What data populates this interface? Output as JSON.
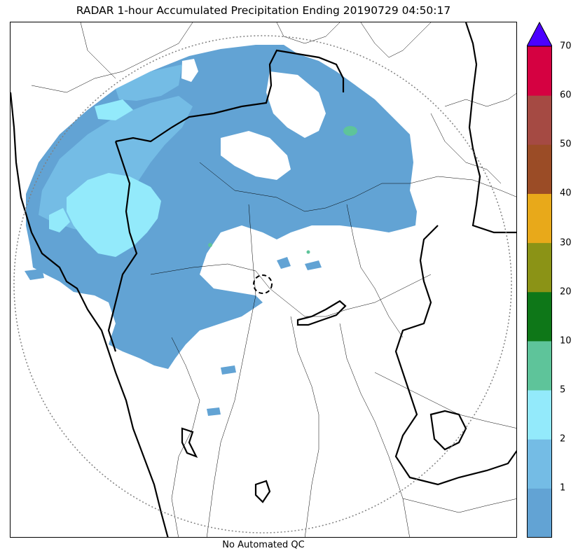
{
  "title": "RADAR 1-hour Accumulated Precipitation Ending 20190729 04:50:17",
  "qc_note": "No Automated QC",
  "colorbar": {
    "ticks": [
      "1",
      "2",
      "5",
      "10",
      "20",
      "30",
      "40",
      "50",
      "60",
      "70"
    ],
    "colors": [
      "#62a3d4",
      "#74bce5",
      "#93eafb",
      "#5ec49a",
      "#0e7718",
      "#8b9316",
      "#e8a91a",
      "#9b4c26",
      "#a54a43",
      "#d50141"
    ],
    "extend_color": "#4b00ff"
  },
  "legend_colors": {
    "light_blue": "#62a3d4",
    "sky_blue": "#74bce5",
    "cyan": "#93eafb",
    "teal": "#5ec49a"
  }
}
